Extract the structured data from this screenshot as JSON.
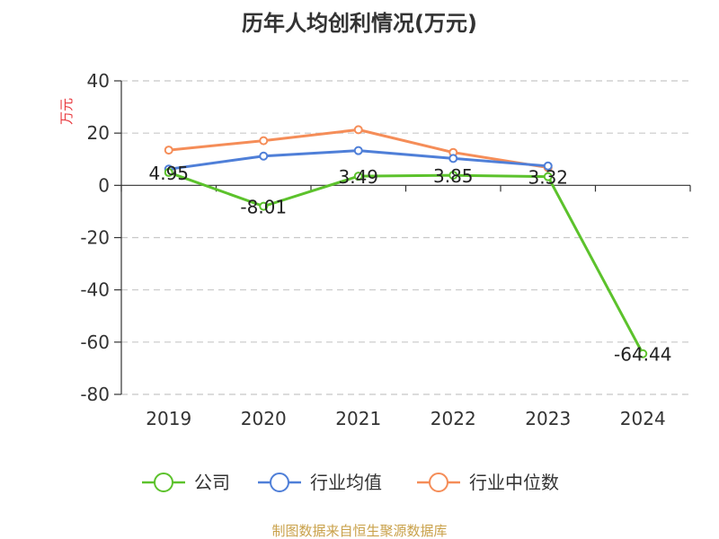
{
  "chart_data": {
    "type": "line",
    "title": "历年人均创利情况(万元)",
    "ylabel": "万元",
    "ylim": [
      -80,
      40
    ],
    "yticks": [
      40,
      20,
      0,
      -20,
      -40,
      -60,
      -80
    ],
    "categories": [
      "2019",
      "2020",
      "2021",
      "2022",
      "2023",
      "2024"
    ],
    "series": [
      {
        "name": "公司",
        "color": "#5cc22c",
        "values": [
          4.95,
          -8.01,
          3.49,
          3.85,
          3.32,
          -64.44
        ],
        "labels": [
          "4.95",
          "-8.01",
          "3.49",
          "3.85",
          "3.32",
          "-64.44"
        ]
      },
      {
        "name": "行业均值",
        "color": "#4f7fd8",
        "values": [
          6.2,
          11.2,
          13.3,
          10.3,
          7.4,
          null
        ]
      },
      {
        "name": "行业中位数",
        "color": "#f58d58",
        "values": [
          13.5,
          17.1,
          21.3,
          12.6,
          6.8,
          null
        ]
      }
    ],
    "grid": true,
    "legend_position": "bottom"
  },
  "source_note": "制图数据来自恒生聚源数据库"
}
